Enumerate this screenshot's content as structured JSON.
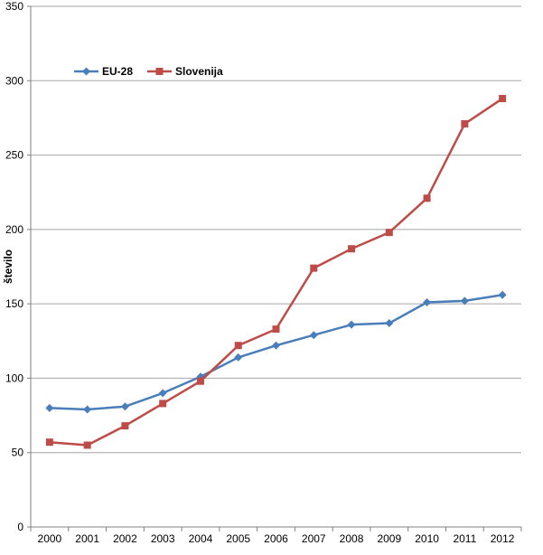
{
  "chart_data": {
    "type": "line",
    "categories": [
      "2000",
      "2001",
      "2002",
      "2003",
      "2004",
      "2005",
      "2006",
      "2007",
      "2008",
      "2009",
      "2010",
      "2011",
      "2012"
    ],
    "series": [
      {
        "name": "EU-28",
        "color": "#4a7ebb",
        "marker": "diamond",
        "values": [
          80,
          79,
          81,
          90,
          101,
          114,
          122,
          129,
          136,
          137,
          151,
          152,
          156
        ]
      },
      {
        "name": "Slovenija",
        "color": "#be4b48",
        "marker": "square",
        "values": [
          57,
          55,
          68,
          83,
          98,
          122,
          133,
          174,
          187,
          198,
          221,
          271,
          288
        ]
      }
    ],
    "ylabel": "število",
    "xlabel": "",
    "ylim": [
      0,
      350
    ],
    "yticks": [
      0,
      50,
      100,
      150,
      200,
      250,
      300,
      350
    ],
    "grid": true,
    "legend": "top-left"
  }
}
